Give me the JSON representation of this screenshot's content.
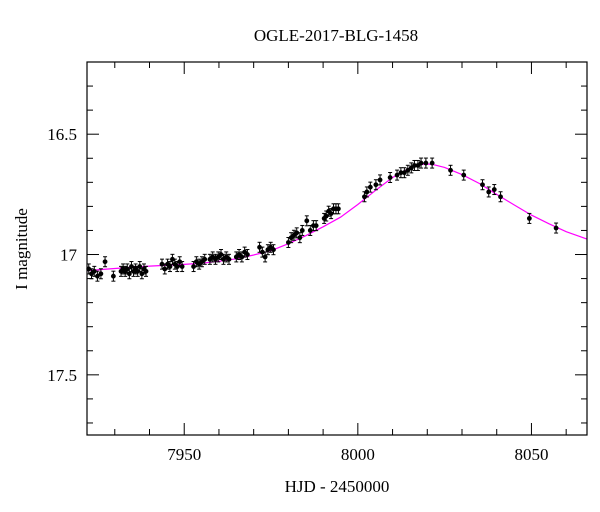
{
  "chart_data": {
    "type": "scatter",
    "title": "OGLE-2017-BLG-1458",
    "xlabel": "HJD - 2450000",
    "ylabel": "I magnitude",
    "xlim": [
      7922,
      8066
    ],
    "ylim": [
      17.75,
      16.2
    ],
    "y_inverted": true,
    "xticks": [
      7950,
      8000,
      8050
    ],
    "xtick_labels": [
      "7950",
      "8000",
      "8050"
    ],
    "yticks": [
      16.5,
      17,
      17.5
    ],
    "ytick_labels": [
      "16.5",
      "17",
      "17.5"
    ],
    "grid": false,
    "legend": "none",
    "series": [
      {
        "kind": "points_with_errorbars",
        "color": "#000000",
        "points": [
          [
            7922.5,
            17.06
          ],
          [
            7923.3,
            17.08
          ],
          [
            7924.1,
            17.07
          ],
          [
            7925.0,
            17.09
          ],
          [
            7926.0,
            17.08
          ],
          [
            7927.2,
            17.03
          ],
          [
            7929.6,
            17.09
          ],
          [
            7931.8,
            17.07
          ],
          [
            7932.4,
            17.06
          ],
          [
            7933.0,
            17.07
          ],
          [
            7933.6,
            17.06
          ],
          [
            7934.2,
            17.08
          ],
          [
            7934.8,
            17.05
          ],
          [
            7935.4,
            17.07
          ],
          [
            7936.0,
            17.06
          ],
          [
            7936.6,
            17.07
          ],
          [
            7937.2,
            17.05
          ],
          [
            7937.8,
            17.08
          ],
          [
            7938.4,
            17.06
          ],
          [
            7939.0,
            17.07
          ],
          [
            7943.6,
            17.04
          ],
          [
            7944.4,
            17.06
          ],
          [
            7945.2,
            17.04
          ],
          [
            7945.9,
            17.05
          ],
          [
            7946.6,
            17.02
          ],
          [
            7947.3,
            17.04
          ],
          [
            7948.0,
            17.05
          ],
          [
            7948.7,
            17.03
          ],
          [
            7949.4,
            17.05
          ],
          [
            7952.7,
            17.05
          ],
          [
            7953.5,
            17.03
          ],
          [
            7954.3,
            17.04
          ],
          [
            7955.1,
            17.03
          ],
          [
            7955.9,
            17.02
          ],
          [
            7957.4,
            17.02
          ],
          [
            7958.2,
            17.01
          ],
          [
            7959.0,
            17.02
          ],
          [
            7959.8,
            17.01
          ],
          [
            7960.6,
            17.0
          ],
          [
            7961.3,
            17.02
          ],
          [
            7962.1,
            17.01
          ],
          [
            7962.9,
            17.02
          ],
          [
            7965.0,
            17.01
          ],
          [
            7965.8,
            17.0
          ],
          [
            7966.6,
            17.01
          ],
          [
            7967.4,
            16.99
          ],
          [
            7968.2,
            17.0
          ],
          [
            7971.7,
            16.97
          ],
          [
            7972.5,
            16.99
          ],
          [
            7973.3,
            17.01
          ],
          [
            7974.1,
            16.98
          ],
          [
            7974.9,
            16.97
          ],
          [
            7975.7,
            16.98
          ],
          [
            7980.0,
            16.95
          ],
          [
            7980.8,
            16.93
          ],
          [
            7981.6,
            16.92
          ],
          [
            7982.4,
            16.91
          ],
          [
            7983.3,
            16.93
          ],
          [
            7984.0,
            16.9
          ],
          [
            7985.3,
            16.86
          ],
          [
            7986.3,
            16.9
          ],
          [
            7987.2,
            16.88
          ],
          [
            7988.0,
            16.88
          ],
          [
            7990.3,
            16.85
          ],
          [
            7990.9,
            16.84
          ],
          [
            7991.6,
            16.82
          ],
          [
            7992.3,
            16.83
          ],
          [
            7993.0,
            16.81
          ],
          [
            7993.7,
            16.81
          ],
          [
            7994.4,
            16.81
          ],
          [
            8001.9,
            16.76
          ],
          [
            8002.6,
            16.74
          ],
          [
            8003.6,
            16.72
          ],
          [
            8005.2,
            16.71
          ],
          [
            8006.4,
            16.69
          ],
          [
            8009.3,
            16.68
          ],
          [
            8011.3,
            16.67
          ],
          [
            8012.4,
            16.66
          ],
          [
            8013.4,
            16.66
          ],
          [
            8014.4,
            16.65
          ],
          [
            8015.4,
            16.64
          ],
          [
            8016.3,
            16.63
          ],
          [
            8017.3,
            16.63
          ],
          [
            8018.2,
            16.62
          ],
          [
            8019.6,
            16.62
          ],
          [
            8021.4,
            16.62
          ],
          [
            8026.7,
            16.65
          ],
          [
            8030.5,
            16.67
          ],
          [
            8035.9,
            16.71
          ],
          [
            8037.7,
            16.74
          ],
          [
            8039.3,
            16.73
          ],
          [
            8041.1,
            16.76
          ],
          [
            8049.4,
            16.85
          ],
          [
            8057.1,
            16.89
          ]
        ]
      },
      {
        "kind": "model_curve",
        "color": "#ff00ff",
        "points": [
          [
            7922,
            17.067
          ],
          [
            7930,
            17.058
          ],
          [
            7940,
            17.048
          ],
          [
            7950,
            17.041
          ],
          [
            7955,
            17.036
          ],
          [
            7960,
            17.028
          ],
          [
            7965,
            17.018
          ],
          [
            7970,
            17.002
          ],
          [
            7975,
            16.984
          ],
          [
            7980,
            16.955
          ],
          [
            7985,
            16.922
          ],
          [
            7990,
            16.885
          ],
          [
            7995,
            16.845
          ],
          [
            8000,
            16.792
          ],
          [
            8005,
            16.735
          ],
          [
            8010,
            16.68
          ],
          [
            8015,
            16.64
          ],
          [
            8018,
            16.626
          ],
          [
            8020,
            16.624
          ],
          [
            8022,
            16.627
          ],
          [
            8025,
            16.638
          ],
          [
            8030,
            16.668
          ],
          [
            8035,
            16.705
          ],
          [
            8040,
            16.75
          ],
          [
            8045,
            16.794
          ],
          [
            8050,
            16.836
          ],
          [
            8055,
            16.872
          ],
          [
            8060,
            16.905
          ],
          [
            8066,
            16.936
          ]
        ]
      }
    ]
  }
}
